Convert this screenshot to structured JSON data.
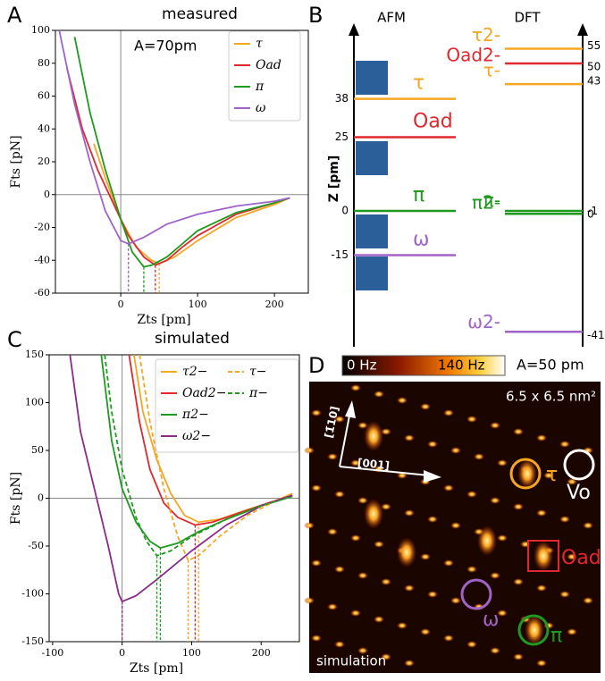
{
  "chart_data": [
    {
      "type": "line",
      "panel": "A",
      "title": "measured",
      "annotation": "A=70pm",
      "xlabel": "Zts [pm]",
      "ylabel": "Fts [pN]",
      "xlim": [
        -85,
        244
      ],
      "ylim": [
        -60,
        100
      ],
      "xticks": [
        0,
        100,
        200
      ],
      "yticks": [
        -60,
        -40,
        -20,
        0,
        20,
        40,
        60,
        80,
        100
      ],
      "legend": "upper right",
      "series": [
        {
          "name": "τ",
          "color": "#f5a623",
          "dashed": false,
          "x": [
            -35,
            -20,
            0,
            20,
            40,
            50,
            70,
            100,
            150,
            200,
            220
          ],
          "values": [
            31,
            10,
            -15,
            -32,
            -40,
            -42,
            -38,
            -28,
            -14,
            -6,
            -2
          ]
        },
        {
          "name": "Oad",
          "color": "#e0282e",
          "dashed": false,
          "x": [
            -70,
            -50,
            -30,
            -10,
            10,
            30,
            45,
            60,
            80,
            100,
            150,
            200,
            220
          ],
          "values": [
            77,
            40,
            15,
            -5,
            -25,
            -38,
            -43,
            -40,
            -32,
            -25,
            -12,
            -5,
            -2
          ]
        },
        {
          "name": "π",
          "color": "#1f9a1f",
          "dashed": false,
          "x": [
            -60,
            -40,
            -20,
            0,
            15,
            30,
            40,
            60,
            80,
            100,
            150,
            200,
            220
          ],
          "values": [
            96,
            50,
            15,
            -15,
            -35,
            -44,
            -43,
            -38,
            -30,
            -22,
            -11,
            -5,
            -2
          ]
        },
        {
          "name": "ω",
          "color": "#a064c8",
          "dashed": false,
          "x": [
            -80,
            -60,
            -40,
            -20,
            0,
            10,
            30,
            60,
            100,
            150,
            200,
            220
          ],
          "values": [
            100,
            55,
            20,
            -10,
            -28,
            -30,
            -26,
            -18,
            -12,
            -7,
            -4,
            -2
          ]
        }
      ]
    },
    {
      "type": "line",
      "panel": "C",
      "title": "simulated",
      "xlabel": "Zts [pm]",
      "ylabel": "Fts [pN]",
      "xlim": [
        -105,
        255
      ],
      "ylim": [
        -150,
        150
      ],
      "xticks": [
        -100,
        0,
        100,
        200
      ],
      "yticks": [
        -150,
        -100,
        -50,
        0,
        50,
        100,
        150
      ],
      "legend": "upper right",
      "series": [
        {
          "name": "τ2−",
          "color": "#f5a623",
          "dashed": false,
          "x": [
            17,
            30,
            50,
            70,
            90,
            110,
            140,
            180,
            220,
            245
          ],
          "values": [
            150,
            90,
            40,
            5,
            -18,
            -25,
            -22,
            -12,
            -3,
            5
          ]
        },
        {
          "name": "Oad2−",
          "color": "#e0282e",
          "dashed": false,
          "x": [
            10,
            25,
            40,
            60,
            80,
            105,
            130,
            170,
            210,
            245
          ],
          "values": [
            150,
            80,
            30,
            -5,
            -20,
            -28,
            -25,
            -15,
            -5,
            3
          ]
        },
        {
          "name": "π2−",
          "color": "#1f9a1f",
          "dashed": false,
          "x": [
            -30,
            -15,
            0,
            20,
            40,
            55,
            80,
            110,
            150,
            200,
            245
          ],
          "values": [
            150,
            60,
            10,
            -25,
            -45,
            -52,
            -47,
            -35,
            -22,
            -8,
            2
          ]
        },
        {
          "name": "ω2−",
          "color": "#8a2a8a",
          "dashed": false,
          "x": [
            -75,
            -60,
            -40,
            -20,
            -5,
            0,
            20,
            50,
            100,
            150,
            200,
            245
          ],
          "values": [
            150,
            70,
            10,
            -50,
            -100,
            -108,
            -102,
            -85,
            -55,
            -28,
            -8,
            3
          ]
        },
        {
          "name": "τ−",
          "color": "#f5a623",
          "dashed": true,
          "x": [
            25,
            40,
            60,
            80,
            95,
            110,
            140,
            180,
            220
          ],
          "values": [
            150,
            80,
            10,
            -40,
            -65,
            -60,
            -40,
            -18,
            -3
          ]
        },
        {
          "name": "π−",
          "color": "#1f9a1f",
          "dashed": true,
          "x": [
            -25,
            -15,
            0,
            20,
            35,
            50,
            70,
            100,
            150,
            200,
            245
          ],
          "values": [
            150,
            90,
            30,
            -20,
            -45,
            -60,
            -55,
            -40,
            -22,
            -8,
            2
          ]
        }
      ]
    }
  ],
  "panel_b": {
    "panel": "B",
    "afm_title": "AFM",
    "dft_title": "DFT",
    "axis_label": "Z [pm]",
    "afm_levels": [
      {
        "name": "τ",
        "value": 38,
        "color": "#f5a623"
      },
      {
        "name": "Oad",
        "value": 25,
        "color": "#e0282e"
      },
      {
        "name": "π",
        "value": 0,
        "color": "#1f9a1f"
      },
      {
        "name": "ω",
        "value": -15,
        "color": "#a064c8"
      }
    ],
    "dft_levels": [
      {
        "name": "τ2-",
        "value": 55,
        "color": "#f5a623"
      },
      {
        "name": "Oad2-",
        "value": 50,
        "color": "#e0282e"
      },
      {
        "name": "τ-",
        "value": 43,
        "color": "#f5a623"
      },
      {
        "name": "π2-",
        "value": 0,
        "color": "#1f9a1f"
      },
      {
        "name": "π-",
        "value": -1,
        "color": "#1f9a1f"
      },
      {
        "name": "ω2-",
        "value": -41,
        "color": "#a064c8"
      }
    ]
  },
  "panel_d": {
    "panel": "D",
    "colorbar_min": "0 Hz",
    "colorbar_max": "140 Hz",
    "annotation": "A=50 pm",
    "size": "6.5 x 6.5 nm²",
    "direction_1": "[1̄10]",
    "direction_2": "[001]",
    "footer": "simulation",
    "markers": [
      {
        "label": "τ",
        "color": "#f5a623"
      },
      {
        "label": "Vo",
        "color": "#ffffff"
      },
      {
        "label": "Oad",
        "color": "#e0282e"
      },
      {
        "label": "ω",
        "color": "#a064c8"
      },
      {
        "label": "π",
        "color": "#1f9a1f"
      }
    ]
  }
}
